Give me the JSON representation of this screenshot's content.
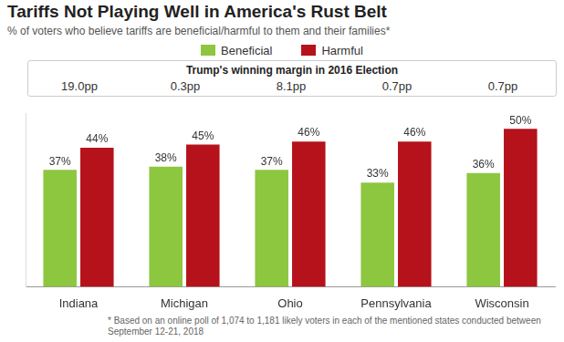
{
  "chart_data": {
    "type": "bar",
    "title": "Tariffs Not Playing Well in America's Rust Belt",
    "subtitle": "% of voters who believe tariffs are beneficial/harmful to them and their families*",
    "categories": [
      "Indiana",
      "Michigan",
      "Ohio",
      "Pennsylvania",
      "Wisconsin"
    ],
    "series": [
      {
        "name": "Beneficial",
        "color": "#8dc63f",
        "values": [
          37,
          38,
          37,
          33,
          36
        ],
        "value_labels": [
          "37%",
          "38%",
          "37%",
          "33%",
          "36%"
        ]
      },
      {
        "name": "Harmful",
        "color": "#b5121b",
        "values": [
          44,
          45,
          46,
          46,
          50
        ],
        "value_labels": [
          "44%",
          "45%",
          "46%",
          "46%",
          "50%"
        ]
      }
    ],
    "annotations": {
      "title": "Trump's winning margin in 2016 Election",
      "labels": [
        "19.0pp",
        "0.3pp",
        "8.1pp",
        "0.7pp",
        "0.7pp"
      ]
    },
    "footnote": "* Based on an online poll of 1,074 to 1,181 likely voters in each of the mentioned states conducted between September 12-21, 2018",
    "ylim": [
      0,
      55
    ],
    "grid": false,
    "legend": "top",
    "data_labels": true,
    "tick_labels": "x"
  }
}
